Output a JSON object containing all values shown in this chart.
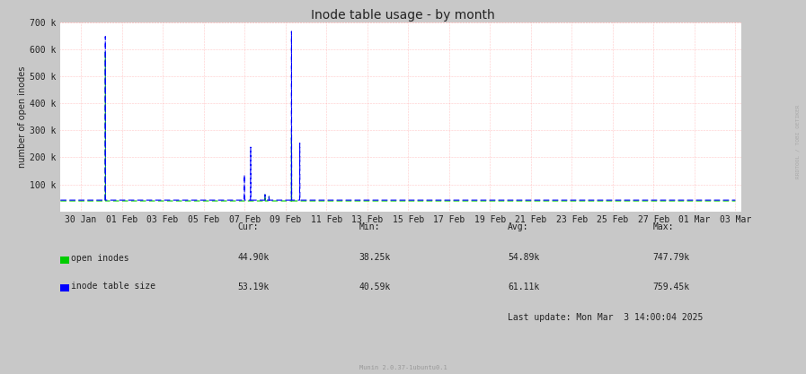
{
  "title": "Inode table usage - by month",
  "ylabel": "number of open inodes",
  "background_color": "#c8c8c8",
  "plot_bg_color": "#ffffff",
  "open_inodes_color": "#00cc00",
  "inode_table_color": "#0000ff",
  "ylim": [
    0,
    700000
  ],
  "yticks": [
    0,
    100000,
    200000,
    300000,
    400000,
    500000,
    600000,
    700000
  ],
  "ytick_labels": [
    "",
    "100 k",
    "200 k",
    "300 k",
    "400 k",
    "500 k",
    "600 k",
    "700 k"
  ],
  "xtick_labels": [
    "30 Jan",
    "01 Feb",
    "03 Feb",
    "05 Feb",
    "07 Feb",
    "09 Feb",
    "11 Feb",
    "13 Feb",
    "15 Feb",
    "17 Feb",
    "19 Feb",
    "21 Feb",
    "23 Feb",
    "25 Feb",
    "27 Feb",
    "01 Mar",
    "03 Mar"
  ],
  "legend_labels": [
    "open inodes",
    "inode table size"
  ],
  "stats_cur_open": "44.90k",
  "stats_cur_inode": "53.19k",
  "stats_min_open": "38.25k",
  "stats_min_inode": "40.59k",
  "stats_avg_open": "54.89k",
  "stats_avg_inode": "61.11k",
  "stats_max_open": "747.79k",
  "stats_max_inode": "759.45k",
  "last_update": "Last update: Mon Mar  3 14:00:04 2025",
  "munin_version": "Munin 2.0.37-1ubuntu0.1",
  "watermark": "RRDTOOL / TOBI OETIKER",
  "title_fontsize": 10,
  "axis_fontsize": 7,
  "label_fontsize": 7,
  "base_open": 38500,
  "base_inode": 41500,
  "spike1_open": 590000,
  "spike1_inode": 648000,
  "spike2a_inode": 135000,
  "spike2b_inode": 238000,
  "spike3_open": 285000,
  "spike3_inode": 667000,
  "spike4_inode": 253000,
  "n_days": 33
}
